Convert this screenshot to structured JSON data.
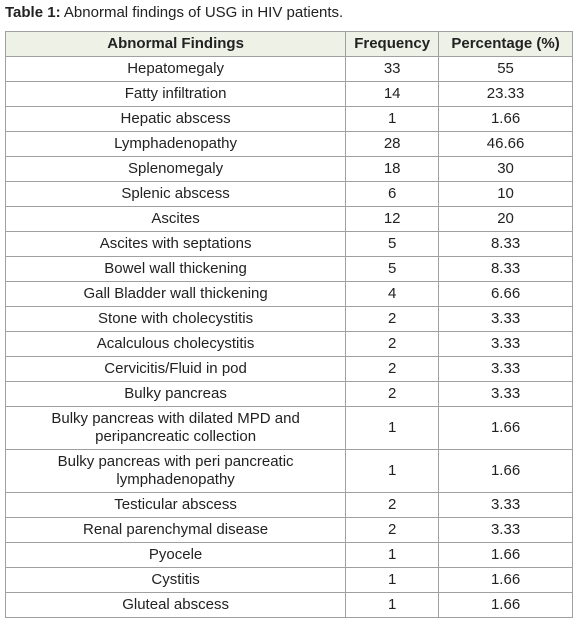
{
  "caption": {
    "label": "Table 1:",
    "text": "Abnormal findings of USG in HIV patients."
  },
  "table": {
    "header": [
      "Abnormal Findings",
      "Frequency",
      "Percentage (%)"
    ],
    "rows": [
      [
        "Hepatomegaly",
        "33",
        "55"
      ],
      [
        "Fatty infiltration",
        "14",
        "23.33"
      ],
      [
        "Hepatic abscess",
        "1",
        "1.66"
      ],
      [
        "Lymphadenopathy",
        "28",
        "46.66"
      ],
      [
        "Splenomegaly",
        "18",
        "30"
      ],
      [
        "Splenic abscess",
        "6",
        "10"
      ],
      [
        "Ascites",
        "12",
        "20"
      ],
      [
        "Ascites with septations",
        "5",
        "8.33"
      ],
      [
        "Bowel wall thickening",
        "5",
        "8.33"
      ],
      [
        "Gall Bladder wall thickening",
        "4",
        "6.66"
      ],
      [
        "Stone with cholecystitis",
        "2",
        "3.33"
      ],
      [
        "Acalculous cholecystitis",
        "2",
        "3.33"
      ],
      [
        "Cervicitis/Fluid in pod",
        "2",
        "3.33"
      ],
      [
        "Bulky pancreas",
        "2",
        "3.33"
      ],
      [
        "Bulky pancreas with dilated MPD and peripancreatic collection",
        "1",
        "1.66"
      ],
      [
        "Bulky pancreas with peri pancreatic lymphadenopathy",
        "1",
        "1.66"
      ],
      [
        "Testicular abscess",
        "2",
        "3.33"
      ],
      [
        "Renal parenchymal disease",
        "2",
        "3.33"
      ],
      [
        "Pyocele",
        "1",
        "1.66"
      ],
      [
        "Cystitis",
        "1",
        "1.66"
      ],
      [
        "Gluteal abscess",
        "1",
        "1.66"
      ]
    ]
  }
}
